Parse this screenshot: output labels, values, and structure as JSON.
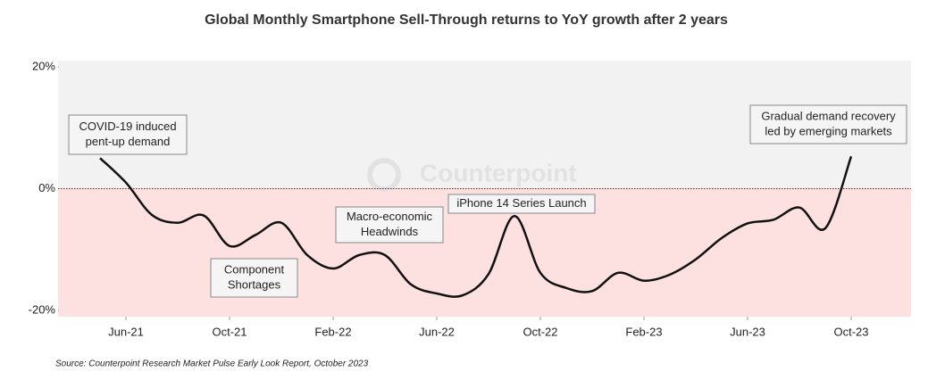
{
  "chart_data": {
    "type": "line",
    "title": "Global Monthly Smartphone Sell-Through returns to YoY growth after 2 years",
    "source": "Source: Counterpoint Research Market Pulse Early Look Report, October 2023",
    "watermark": "Counterpoint",
    "categories": [
      null,
      "Jun-21",
      null,
      null,
      null,
      "Oct-21",
      null,
      null,
      null,
      "Feb-22",
      null,
      null,
      null,
      "Jun-22",
      null,
      null,
      null,
      "Oct-22",
      null,
      null,
      null,
      "Feb-23",
      null,
      null,
      null,
      "Jun-23",
      null,
      null,
      null,
      "Oct-23"
    ],
    "series": [
      {
        "color": "#111111",
        "values": [
          5,
          1,
          -4.3,
          -5.6,
          -4.4,
          -9.4,
          -7.6,
          -5.6,
          -10.9,
          -13.1,
          -10.9,
          -10.9,
          -15.7,
          -17.2,
          -17.5,
          -14,
          -4.5,
          -13.8,
          -16.3,
          -16.8,
          -13.8,
          -15.1,
          -14.1,
          -11.6,
          -8.1,
          -5.7,
          -5.1,
          -3.1,
          -6.5,
          5.3
        ]
      }
    ],
    "ylim": [
      -21,
      21
    ],
    "yticks": [
      {
        "value": 20,
        "label": "20%"
      },
      {
        "value": 0,
        "label": "0%"
      },
      {
        "value": -20,
        "label": "-20%"
      }
    ],
    "positive_color": "#f2f2f2",
    "negative_color": "#fde0e0",
    "annotations": [
      {
        "lines": [
          "COVID-19 induced",
          "pent-up demand"
        ]
      },
      {
        "lines": [
          "Component",
          "Shortages"
        ]
      },
      {
        "lines": [
          "Macro-economic",
          "Headwinds"
        ]
      },
      {
        "lines": [
          "iPhone 14 Series Launch"
        ]
      },
      {
        "lines": [
          "Gradual demand recovery",
          "led by emerging markets"
        ]
      }
    ]
  }
}
